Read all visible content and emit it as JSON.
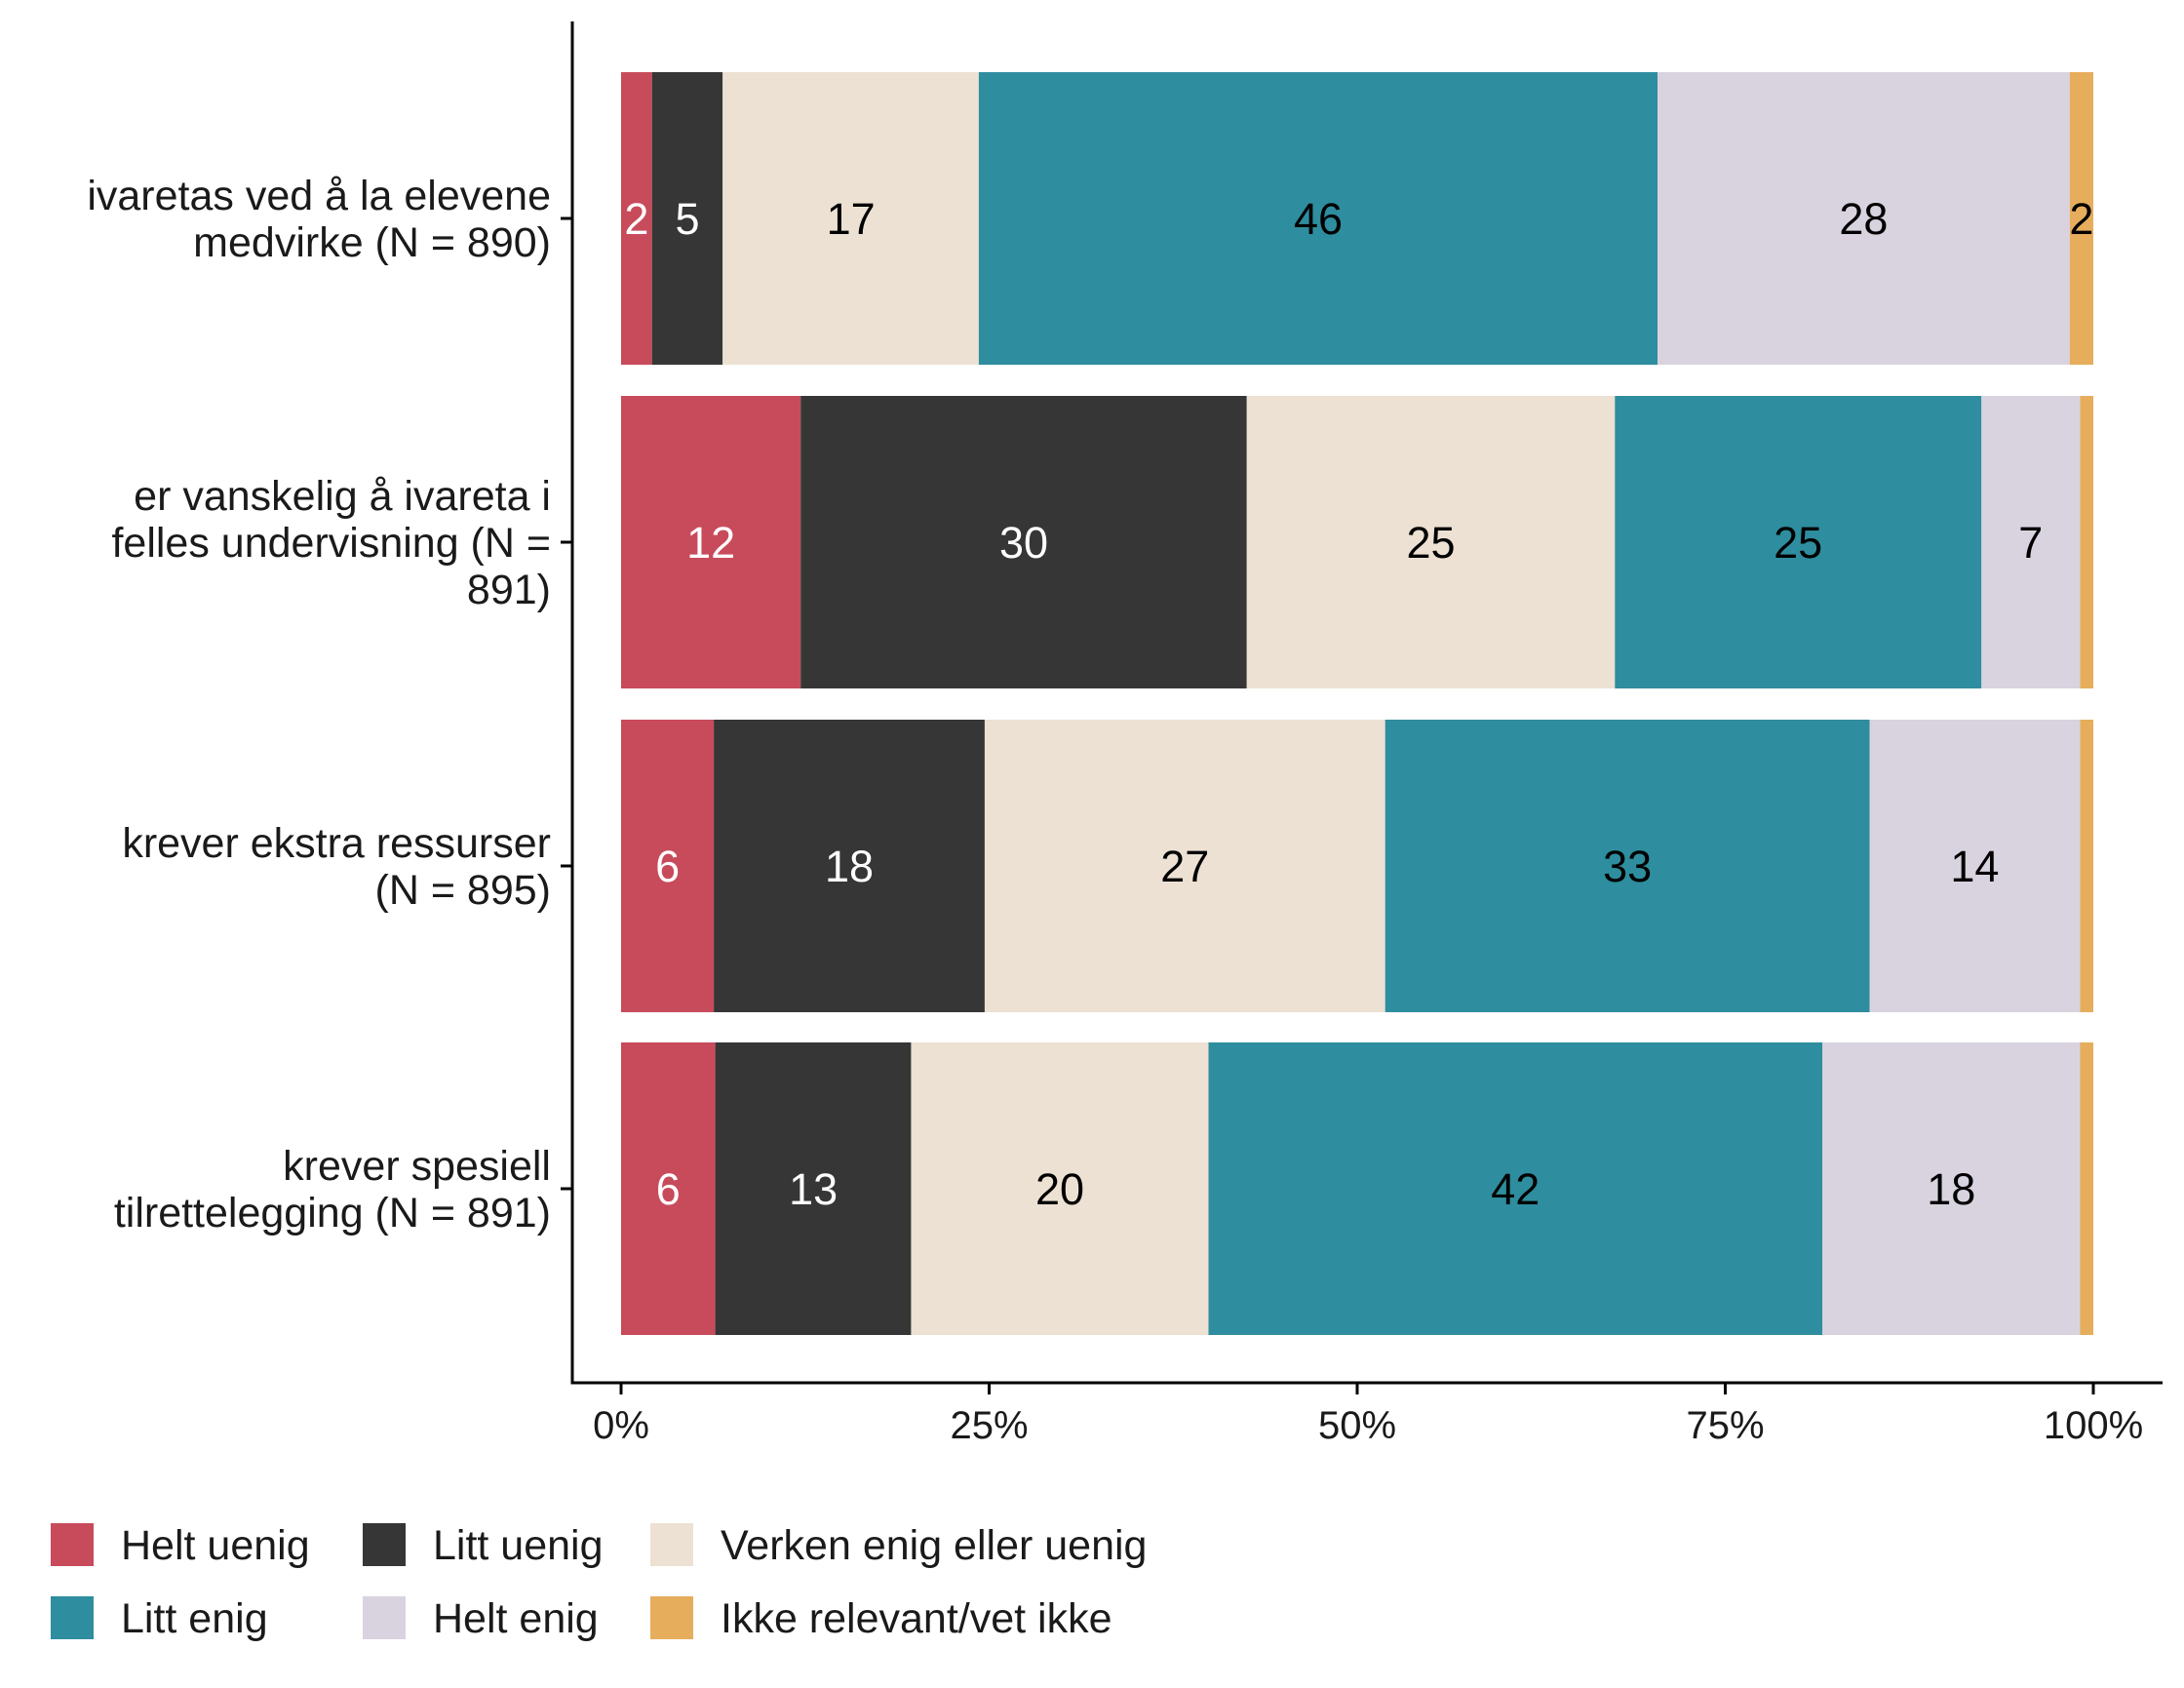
{
  "chart_data": {
    "type": "bar",
    "orientation": "horizontal",
    "stacked": true,
    "normalized": true,
    "categories": [
      "ivaretas ved å la elevene medvirke (N = 890)",
      "er vanskelig å ivareta i felles undervisning (N = 891)",
      "krever ekstra ressurser (N = 895)",
      "krever spesiell tilrettelegging (N = 891)"
    ],
    "category_lines": [
      [
        "ivaretas ved å la elevene",
        "medvirke (N = 890)"
      ],
      [
        "er vanskelig å ivareta i",
        "felles undervisning (N =",
        "891)"
      ],
      [
        "krever ekstra ressurser",
        "(N = 895)"
      ],
      [
        "krever spesiell",
        "tilrettelegging (N = 891)"
      ]
    ],
    "series": [
      {
        "name": "Helt uenig",
        "color": "#c84b5b",
        "label_color": "#ffffff",
        "values": [
          2.1,
          12.2,
          6.3,
          6.4
        ],
        "labels": [
          "2",
          "12",
          "6",
          "6"
        ]
      },
      {
        "name": "Litt uenig",
        "color": "#363636",
        "label_color": "#ffffff",
        "values": [
          4.8,
          30.3,
          18.4,
          13.3
        ],
        "labels": [
          "5",
          "30",
          "18",
          "13"
        ]
      },
      {
        "name": "Verken enig eller uenig",
        "color": "#ece1d2",
        "label_color": "#000000",
        "values": [
          17.4,
          25.0,
          27.2,
          20.2
        ],
        "labels": [
          "17",
          "25",
          "27",
          "20"
        ]
      },
      {
        "name": "Litt enig",
        "color": "#2e8d9e",
        "label_color": "#000000",
        "values": [
          46.1,
          24.9,
          32.9,
          41.7
        ],
        "labels": [
          "46",
          "25",
          "33",
          "42"
        ]
      },
      {
        "name": "Helt enig",
        "color": "#d9d3df",
        "label_color": "#000000",
        "values": [
          28.0,
          6.7,
          14.3,
          17.5
        ],
        "labels": [
          "28",
          "7",
          "14",
          "18"
        ]
      },
      {
        "name": "Ikke relevant/vet ikke",
        "color": "#e6ad5c",
        "label_color": "#000000",
        "values": [
          1.6,
          0.9,
          0.9,
          0.9
        ],
        "labels": [
          "2",
          "",
          "",
          ""
        ]
      }
    ],
    "xlim": [
      0,
      100
    ],
    "xticks": [
      "0%",
      "25%",
      "50%",
      "75%",
      "100%"
    ],
    "xtick_values": [
      0,
      25,
      50,
      75,
      100
    ],
    "legend": {
      "position": "bottom",
      "rows": [
        [
          "Helt uenig",
          "Litt uenig",
          "Verken enig eller uenig"
        ],
        [
          "Litt enig",
          "Helt enig",
          "Ikke relevant/vet ikke"
        ]
      ]
    },
    "grid": false
  }
}
